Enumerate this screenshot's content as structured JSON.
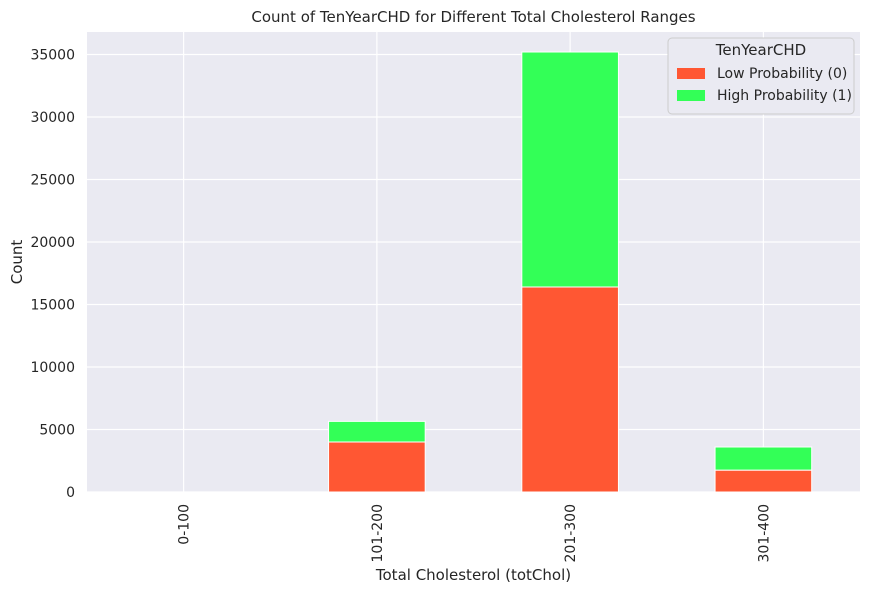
{
  "chart_data": {
    "type": "bar",
    "stacked": true,
    "title": "Count of TenYearCHD for Different Total Cholesterol Ranges",
    "xlabel": "Total Cholesterol (totChol)",
    "ylabel": "Count",
    "categories": [
      "0-100",
      "101-200",
      "201-300",
      "301-400"
    ],
    "ylim": [
      0,
      36800
    ],
    "yticks": [
      0,
      5000,
      10000,
      15000,
      20000,
      25000,
      30000,
      35000
    ],
    "grid": true,
    "legend": {
      "title": "TenYearCHD",
      "placement": "top-right"
    },
    "series": [
      {
        "name": "Low Probability (0)",
        "color": "#ff5733",
        "values": [
          0,
          4000,
          16400,
          1750
        ]
      },
      {
        "name": "High Probability (1)",
        "color": "#33ff57",
        "values": [
          0,
          1650,
          18800,
          1850
        ]
      }
    ]
  }
}
